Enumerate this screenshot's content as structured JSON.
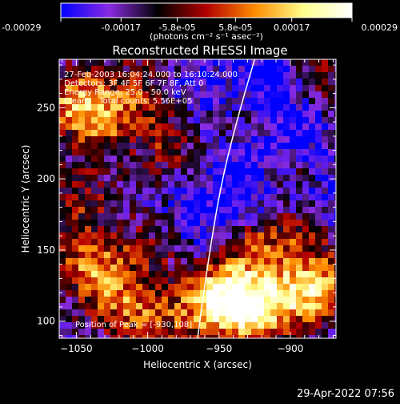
{
  "chart_data": {
    "type": "heatmap",
    "title": "Reconstructed RHESSI Image",
    "xlabel": "Heliocentric X (arcsec)",
    "ylabel": "Heliocentric Y (arcsec)",
    "xlim": [
      -1062,
      -868
    ],
    "ylim": [
      88,
      284
    ],
    "x_ticks": [
      -1050,
      -1000,
      -950,
      -900
    ],
    "y_ticks": [
      100,
      150,
      200,
      250
    ],
    "colorbar": {
      "min": -0.00029,
      "max": 0.00029,
      "tick_values": [
        -0.00029,
        -0.00017,
        -5.8e-05,
        5.8e-05,
        0.00017,
        0.00029
      ],
      "tick_labels": [
        "-0.00029",
        "-0.00017",
        "-5.8e-05",
        "5.8e-05",
        "0.00017",
        "0.00029"
      ],
      "unit_label": "(photons cm⁻² s⁻¹ asec⁻²)",
      "colormap": [
        "#0000ff",
        "#8a2be2",
        "#000000",
        "#b30000",
        "#ff8c00",
        "#ffff8c",
        "#ffffff"
      ]
    },
    "annotations": [
      "27-Feb-2003 16:04:24.000 to 16:10:24.000",
      "Detectors: 3F 4F 5F 6F 7F 8F, Att 0",
      "Energy Range: 25.0 - 50.0 keV",
      "Clean     Total counts: 5.56E+05"
    ],
    "peak_label": "Position of Peak = [-930,108]",
    "peak": [
      -930,
      108
    ],
    "limb_curve": [
      [
        -965,
        88
      ],
      [
        -958,
        140
      ],
      [
        -948,
        200
      ],
      [
        -935,
        250
      ],
      [
        -925,
        284
      ]
    ],
    "hot_regions": [
      {
        "x": -1050,
        "y": 255,
        "amp": 1.0
      },
      {
        "x": -1030,
        "y": 240,
        "amp": 0.7
      },
      {
        "x": -1005,
        "y": 262,
        "amp": 0.6
      },
      {
        "x": -985,
        "y": 225,
        "amp": 0.5
      },
      {
        "x": -1045,
        "y": 185,
        "amp": 0.5
      },
      {
        "x": -1040,
        "y": 140,
        "amp": 0.9
      },
      {
        "x": -1020,
        "y": 115,
        "amp": 0.7
      },
      {
        "x": -995,
        "y": 100,
        "amp": 0.6
      },
      {
        "x": -1000,
        "y": 150,
        "amp": 0.4
      },
      {
        "x": -960,
        "y": 110,
        "amp": 0.7
      },
      {
        "x": -945,
        "y": 120,
        "amp": 1.0
      },
      {
        "x": -930,
        "y": 108,
        "amp": 1.1
      },
      {
        "x": -905,
        "y": 115,
        "amp": 0.9
      },
      {
        "x": -880,
        "y": 125,
        "amp": 1.0
      },
      {
        "x": -925,
        "y": 150,
        "amp": 0.6
      },
      {
        "x": -895,
        "y": 160,
        "amp": 0.6
      },
      {
        "x": -900,
        "y": 205,
        "amp": 0.6
      },
      {
        "x": -920,
        "y": 245,
        "amp": 0.5
      },
      {
        "x": -880,
        "y": 270,
        "amp": 0.5
      }
    ],
    "cold_regions": [
      {
        "x": -915,
        "y": 265,
        "amp": 0.9
      },
      {
        "x": -900,
        "y": 230,
        "amp": 0.8
      },
      {
        "x": -930,
        "y": 200,
        "amp": 0.6
      },
      {
        "x": -960,
        "y": 175,
        "amp": 0.5
      },
      {
        "x": -970,
        "y": 265,
        "amp": 0.4
      },
      {
        "x": -885,
        "y": 185,
        "amp": 0.5
      }
    ]
  },
  "footer": {
    "date": "29-Apr-2022 07:56"
  },
  "colors": {
    "background": "#000000",
    "text": "#ffffff",
    "limb": "#ffffff"
  }
}
